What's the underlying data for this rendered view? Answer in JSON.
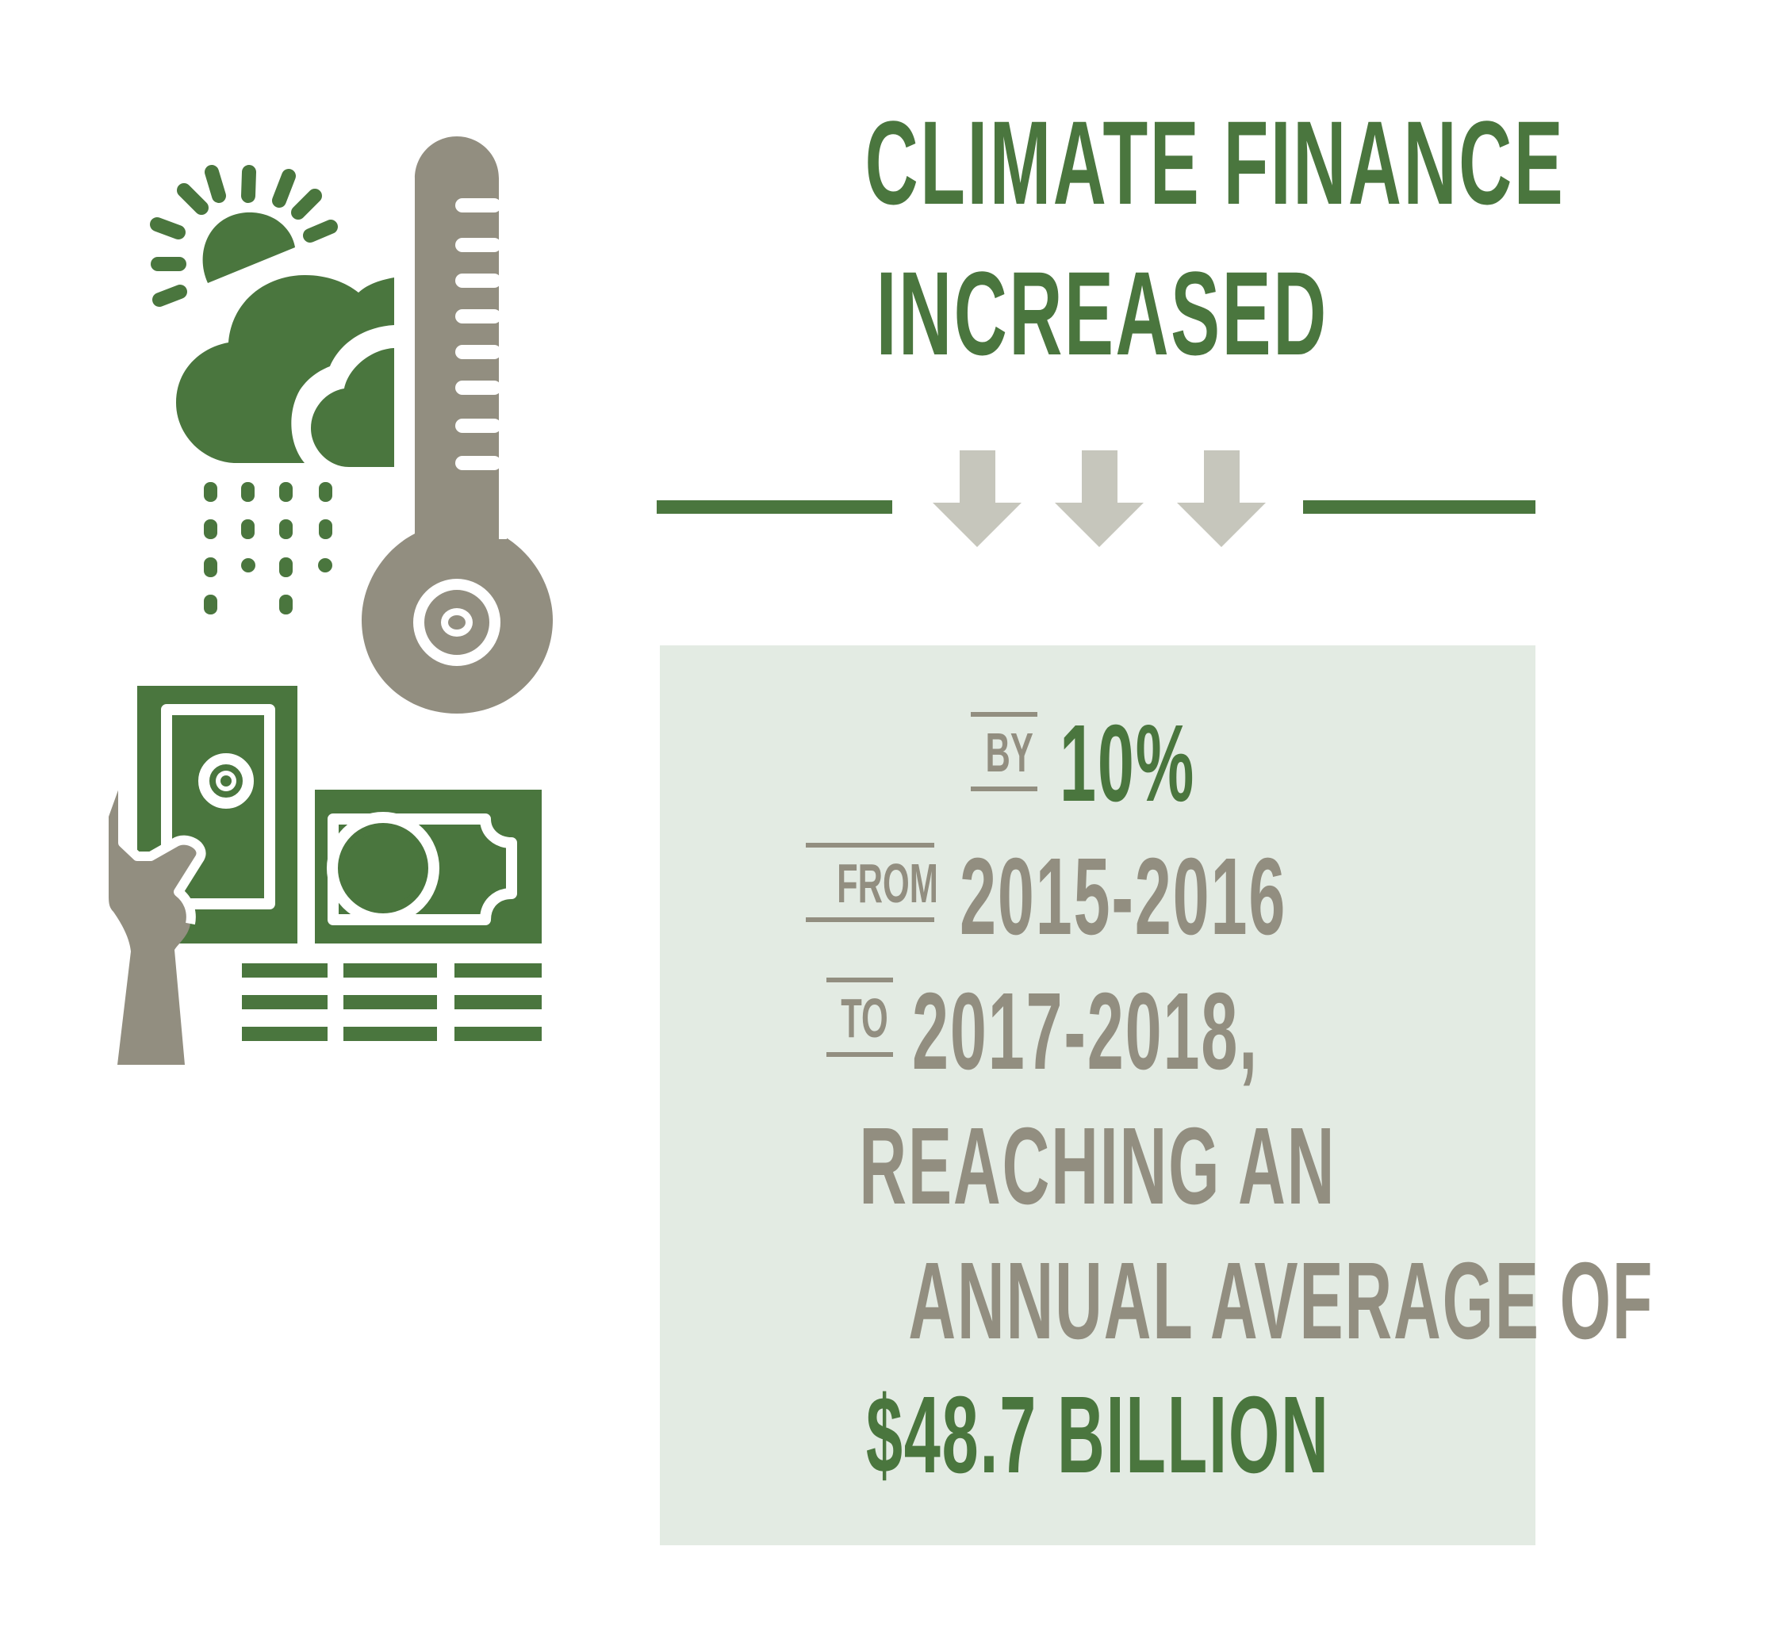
{
  "title": {
    "line1": "CLIMATE FINANCE",
    "line2": "INCREASED"
  },
  "colors": {
    "green": "#4a763e",
    "gray": "#928e80",
    "light_gray": "#c6c6bc",
    "panel_bg": "#e3ebe3"
  },
  "icons": [
    "weather-sun-cloud-rain-icon",
    "thermometer-icon",
    "hand-holding-money-icon",
    "down-arrow-icon"
  ],
  "panel": {
    "by_label": "BY",
    "by_value": "10%",
    "from_label": "FROM",
    "from_value": "2015-2016",
    "to_label": "TO",
    "to_value": "2017-2018,",
    "line4": "REACHING AN",
    "line5": "ANNUAL AVERAGE OF",
    "line6": "$48.7 BILLION"
  }
}
